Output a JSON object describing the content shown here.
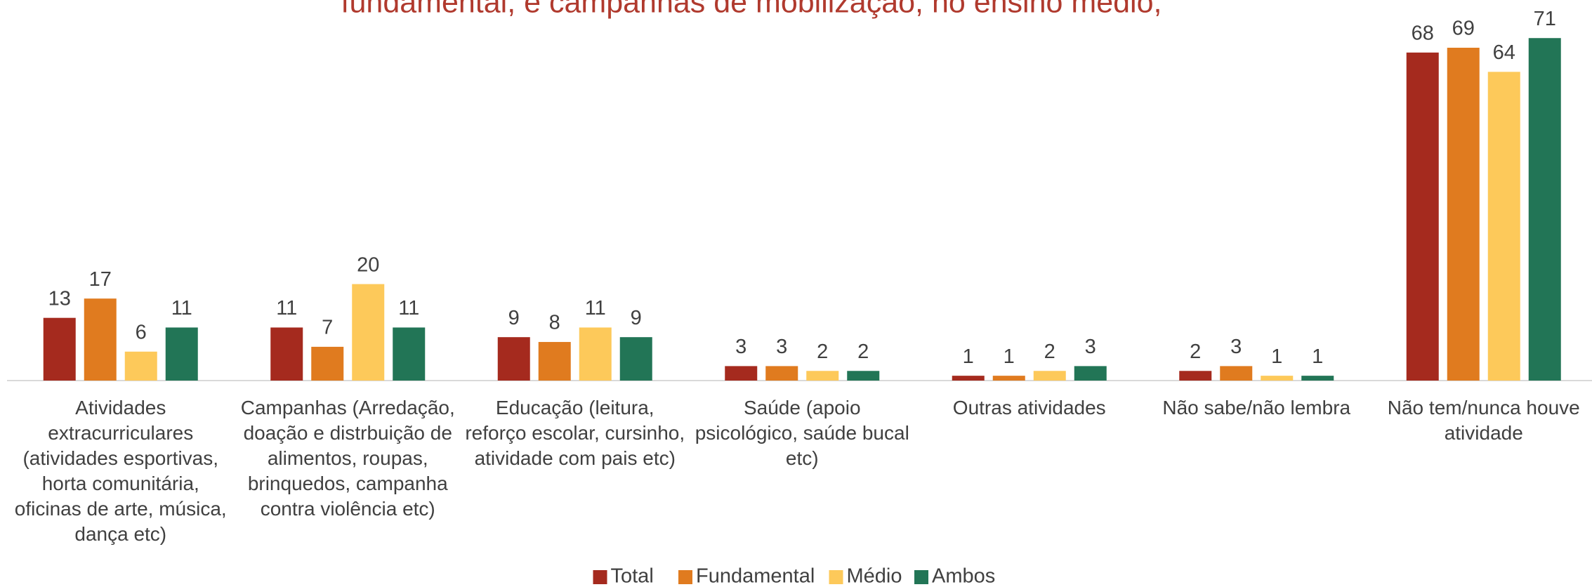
{
  "chart_data": {
    "type": "bar",
    "title": "fundamental, e campanhas de mobilização, no ensino médio,",
    "categories": [
      "Atividades extracurriculares (atividades esportivas, horta comunitária, oficinas de arte, música, dança etc)",
      "Campanhas (Arredação, doação e distrbuição de alimentos, roupas, brinquedos, campanha contra violência etc)",
      "Educação (leitura, reforço escolar, cursinho, atividade com pais etc)",
      "Saúde (apoio psicológico, saúde bucal etc)",
      "Outras atividades",
      "Não sabe/não lembra",
      "Não tem/nunca houve atividade"
    ],
    "series": [
      {
        "name": "Total",
        "color": "#a52a1e",
        "values": [
          13,
          11,
          9,
          3,
          1,
          2,
          68
        ]
      },
      {
        "name": "Fundamental",
        "color": "#e07b1f",
        "values": [
          17,
          7,
          8,
          3,
          1,
          3,
          69
        ]
      },
      {
        "name": "Médio",
        "color": "#fdc95a",
        "values": [
          6,
          20,
          11,
          2,
          2,
          1,
          64
        ]
      },
      {
        "name": "Ambos",
        "color": "#227556",
        "values": [
          11,
          11,
          9,
          2,
          3,
          1,
          71
        ]
      }
    ],
    "legend": "bottom"
  }
}
